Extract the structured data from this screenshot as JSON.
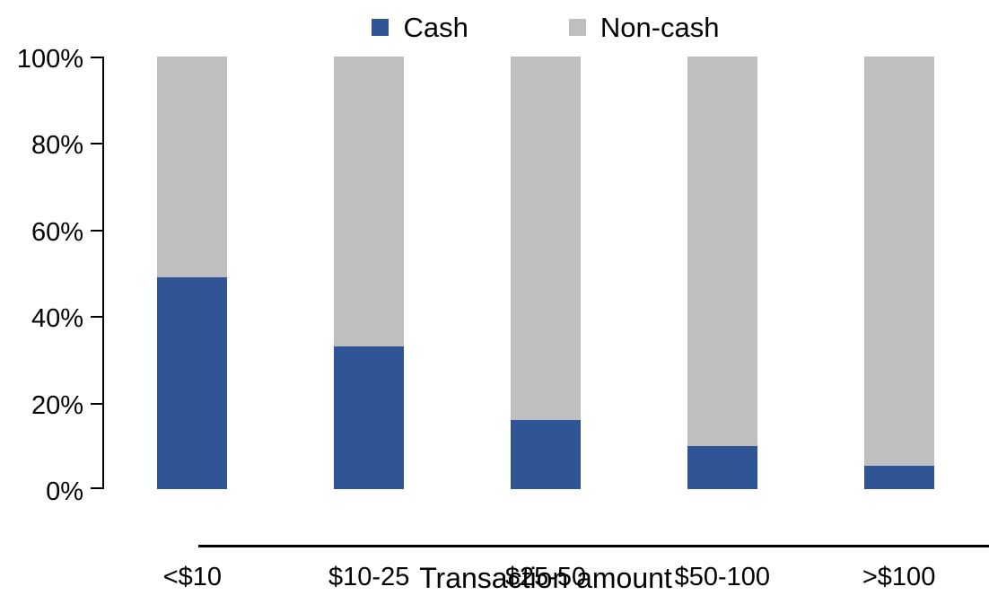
{
  "chart_data": {
    "type": "bar",
    "stacked": true,
    "orientation": "vertical",
    "title": "",
    "xlabel": "Transaction amount",
    "ylabel": "",
    "categories": [
      "<$10",
      "$10-25",
      "$25-50",
      "$50-100",
      ">$100"
    ],
    "series": [
      {
        "name": "Cash",
        "color": "#2F5597",
        "values": [
          49,
          33,
          16,
          10,
          5.5
        ]
      },
      {
        "name": "Non-cash",
        "color": "#BFBFBF",
        "values": [
          51,
          67,
          84,
          90,
          94.5
        ]
      }
    ],
    "ylim": [
      0,
      100
    ],
    "ytick_labels": [
      "0%",
      "20%",
      "40%",
      "60%",
      "80%",
      "100%"
    ],
    "ytick_values": [
      0,
      20,
      40,
      60,
      80,
      100
    ],
    "grid": false,
    "legend_position": "top",
    "axis_color": "#000000",
    "background_color": "#FFFFFF"
  }
}
